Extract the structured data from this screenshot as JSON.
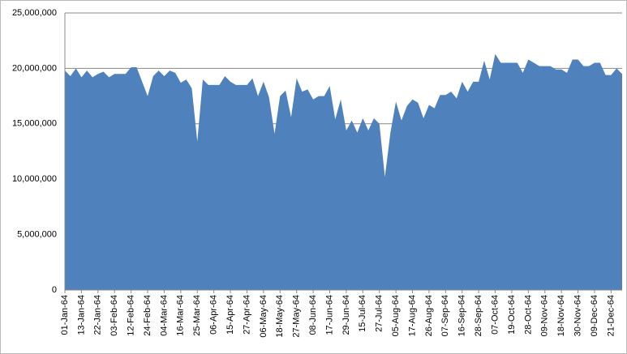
{
  "chart_data": {
    "type": "area",
    "color": "#4f81bd",
    "grid": true,
    "ylim": [
      0,
      25000000
    ],
    "yticks": [
      0,
      {
        "value": 5000000,
        "label": "5,000,000"
      },
      {
        "value": 10000000,
        "label": "10,000,000"
      },
      {
        "value": 15000000,
        "label": "15,000,000"
      },
      {
        "value": 20000000,
        "label": "20,000,000"
      },
      {
        "value": 25000000,
        "label": "25,000,000"
      }
    ],
    "categories": [
      "01-Jan-64",
      null,
      null,
      "13-Jan-64",
      null,
      null,
      "22-Jan-64",
      null,
      null,
      "03-Feb-64",
      null,
      null,
      "12-Feb-64",
      null,
      null,
      "24-Feb-64",
      null,
      null,
      "04-Mar-64",
      null,
      null,
      "16-Mar-64",
      null,
      null,
      "25-Mar-64",
      null,
      null,
      "06-Apr-64",
      null,
      null,
      "15-Apr-64",
      null,
      null,
      "27-Apr-64",
      null,
      null,
      "06-May-64",
      null,
      null,
      "18-May-64",
      null,
      null,
      "27-May-64",
      null,
      null,
      "08-Jun-64",
      null,
      null,
      "17-Jun-64",
      null,
      null,
      "29-Jun-64",
      null,
      null,
      "15-Jul-64",
      null,
      null,
      "27-Jul-64",
      null,
      null,
      "05-Aug-64",
      null,
      null,
      "17-Aug-64",
      null,
      null,
      "26-Aug-64",
      null,
      null,
      "07-Sep-64",
      null,
      null,
      "16-Sep-64",
      null,
      null,
      "28-Sep-64",
      null,
      null,
      "07-Oct-64",
      null,
      null,
      "19-Oct-64",
      null,
      null,
      "28-Oct-64",
      null,
      null,
      "09-Nov-64",
      null,
      null,
      "18-Nov-64",
      null,
      null,
      "30-Nov-64",
      null,
      null,
      "09-Dec-64",
      null,
      null,
      "21-Dec-64",
      null,
      null
    ],
    "values": [
      19800000,
      19300000,
      20000000,
      19200000,
      19800000,
      19200000,
      19500000,
      19700000,
      19200000,
      19500000,
      19500000,
      19500000,
      20100000,
      20100000,
      18800000,
      17500000,
      19300000,
      19800000,
      19300000,
      19800000,
      19600000,
      18700000,
      19000000,
      18200000,
      13400000,
      19000000,
      18500000,
      18500000,
      18500000,
      19300000,
      18800000,
      18500000,
      18500000,
      18500000,
      19100000,
      17500000,
      18800000,
      17400000,
      14100000,
      17500000,
      18000000,
      15600000,
      19100000,
      17900000,
      18100000,
      17200000,
      17500000,
      17500000,
      18400000,
      15400000,
      17200000,
      14400000,
      15300000,
      14200000,
      15500000,
      14400000,
      15500000,
      15000000,
      10200000,
      14200000,
      17000000,
      15300000,
      16600000,
      17200000,
      16900000,
      15500000,
      16700000,
      16400000,
      17600000,
      17600000,
      17900000,
      17300000,
      18800000,
      17900000,
      18800000,
      18800000,
      20700000,
      19000000,
      21300000,
      20500000,
      20500000,
      20500000,
      20500000,
      19600000,
      20800000,
      20500000,
      20200000,
      20200000,
      20200000,
      19900000,
      19900000,
      19600000,
      20800000,
      20800000,
      20200000,
      20200000,
      20500000,
      20500000,
      19400000,
      19400000,
      20000000,
      19500000
    ]
  }
}
